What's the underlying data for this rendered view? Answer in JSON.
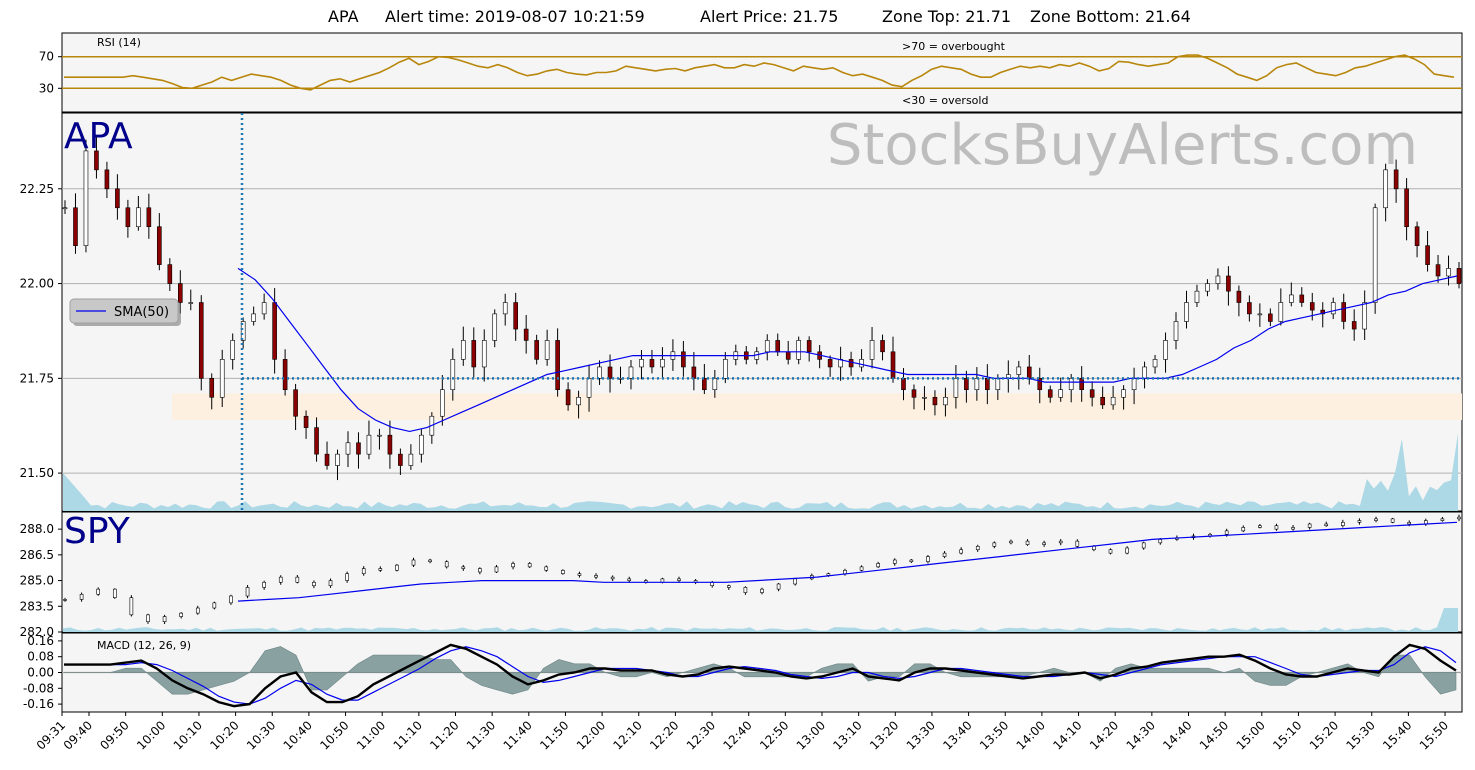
{
  "header": {
    "ticker": "APA",
    "alert_time": "Alert time: 2019-08-07 10:21:59",
    "alert_price": "Alert Price: 21.75",
    "zone_top": "Zone Top: 21.71",
    "zone_bottom": "Zone Bottom: 21.64"
  },
  "watermark": "StocksBuyAlerts.com",
  "colors": {
    "background": "#f5f5f5",
    "rsi_line": "#b8860b",
    "sma_line": "#0000ee",
    "volume": "#add8e6",
    "zone_fill": "#fdf0e0",
    "alert_line": "#1f77b4",
    "macd_hist": "#7f9898",
    "panel_title": "#00008b",
    "watermark": "#bdbdbd"
  },
  "chart_data": [
    {
      "type": "line",
      "title": "RSI (14)",
      "ylim": [
        0,
        100
      ],
      "yticks": [
        "30",
        "70"
      ],
      "reference_lines": [
        70,
        30
      ],
      "annotations": [
        ">70 = overbought",
        "<30 = oversold"
      ],
      "series": [
        {
          "values": [
            44,
            44,
            44,
            44,
            44,
            44,
            44,
            46,
            44,
            42,
            40,
            36,
            31,
            30,
            34,
            38,
            44,
            40,
            44,
            48,
            46,
            44,
            40,
            34,
            30,
            28,
            34,
            40,
            42,
            38,
            42,
            46,
            50,
            56,
            63,
            68,
            60,
            64,
            70,
            69,
            66,
            62,
            58,
            56,
            60,
            56,
            50,
            46,
            48,
            52,
            54,
            50,
            48,
            47,
            50,
            50,
            52,
            58,
            56,
            54,
            52,
            54,
            55,
            52,
            56,
            58,
            60,
            56,
            56,
            60,
            58,
            62,
            60,
            56,
            52,
            58,
            56,
            54,
            56,
            50,
            46,
            48,
            44,
            40,
            34,
            32,
            40,
            46,
            54,
            58,
            56,
            54,
            48,
            44,
            44,
            50,
            54,
            58,
            56,
            58,
            56,
            60,
            58,
            62,
            58,
            52,
            55,
            64,
            63,
            60,
            58,
            60,
            62,
            70,
            72,
            72,
            68,
            62,
            56,
            48,
            44,
            40,
            46,
            56,
            60,
            62,
            56,
            50,
            48,
            46,
            50,
            56,
            58,
            62,
            66,
            70,
            72,
            67,
            60,
            48,
            46,
            44
          ]
        }
      ]
    },
    {
      "type": "candlestick",
      "title": "APA",
      "ylim": [
        21.4,
        22.45
      ],
      "yticks": [
        "21.50",
        "21.75",
        "22.00",
        "22.25"
      ],
      "alert_price": 21.75,
      "zone": [
        21.64,
        21.71
      ],
      "alert_time": "10:21",
      "legend": [
        "SMA(50)"
      ],
      "price_series": [
        22.2,
        22.1,
        22.35,
        22.3,
        22.25,
        22.2,
        22.15,
        22.2,
        22.15,
        22.05,
        22.0,
        21.95,
        21.95,
        21.75,
        21.7,
        21.8,
        21.85,
        21.9,
        21.92,
        21.95,
        21.8,
        21.72,
        21.65,
        21.62,
        21.55,
        21.52,
        21.55,
        21.58,
        21.55,
        21.6,
        21.6,
        21.55,
        21.52,
        21.55,
        21.6,
        21.65,
        21.72,
        21.8,
        21.85,
        21.78,
        21.85,
        21.92,
        21.95,
        21.88,
        21.85,
        21.8,
        21.85,
        21.72,
        21.68,
        21.7,
        21.75,
        21.78,
        21.75,
        21.75,
        21.78,
        21.8,
        21.78,
        21.8,
        21.82,
        21.78,
        21.75,
        21.72,
        21.75,
        21.8,
        21.82,
        21.8,
        21.82,
        21.85,
        21.82,
        21.8,
        21.85,
        21.82,
        21.8,
        21.78,
        21.8,
        21.78,
        21.8,
        21.85,
        21.82,
        21.75,
        21.72,
        21.7,
        21.7,
        21.68,
        21.7,
        21.75,
        21.72,
        21.75,
        21.72,
        21.75,
        21.76,
        21.78,
        21.75,
        21.72,
        21.7,
        21.72,
        21.75,
        21.72,
        21.7,
        21.68,
        21.7,
        21.72,
        21.75,
        21.78,
        21.8,
        21.85,
        21.9,
        21.95,
        21.98,
        22.0,
        22.02,
        21.98,
        21.95,
        21.92,
        21.92,
        21.9,
        21.95,
        21.97,
        21.95,
        21.93,
        21.92,
        21.95,
        21.9,
        21.88,
        21.95,
        22.2,
        22.3,
        22.25,
        22.15,
        22.1,
        22.05,
        22.02,
        22.04,
        22.0
      ],
      "sma_series": [
        22.04,
        22.01,
        21.96,
        21.9,
        21.84,
        21.78,
        21.72,
        21.67,
        21.64,
        21.62,
        21.61,
        21.62,
        21.64,
        21.66,
        21.68,
        21.7,
        21.72,
        21.74,
        21.76,
        21.77,
        21.78,
        21.79,
        21.8,
        21.81,
        21.81,
        21.81,
        21.81,
        21.81,
        21.81,
        21.81,
        21.81,
        21.82,
        21.82,
        21.82,
        21.81,
        21.8,
        21.79,
        21.78,
        21.77,
        21.76,
        21.76,
        21.76,
        21.76,
        21.76,
        21.75,
        21.75,
        21.75,
        21.74,
        21.74,
        21.74,
        21.74,
        21.74,
        21.75,
        21.75,
        21.75,
        21.76,
        21.78,
        21.8,
        21.83,
        21.85,
        21.88,
        21.9,
        21.91,
        21.92,
        21.93,
        21.94,
        21.95,
        21.97,
        21.98,
        22.0,
        22.01,
        22.02
      ]
    },
    {
      "type": "candlestick",
      "title": "SPY",
      "ylim": [
        282.0,
        289.0
      ],
      "yticks": [
        "282.0",
        "283.5",
        "285.0",
        "286.5",
        "288.0"
      ],
      "price_series": [
        283.9,
        284.2,
        284.5,
        284.0,
        283.0,
        282.6,
        282.9,
        283.1,
        283.4,
        283.7,
        284.1,
        284.6,
        284.9,
        285.2,
        284.9,
        284.7,
        285.0,
        285.4,
        285.7,
        285.6,
        285.9,
        286.2,
        286.1,
        285.8,
        285.7,
        285.5,
        285.8,
        286.0,
        285.8,
        285.6,
        285.4,
        285.3,
        285.2,
        285.1,
        285.0,
        284.9,
        285.1,
        285.0,
        284.9,
        284.7,
        284.6,
        284.3,
        284.5,
        284.8,
        285.1,
        285.3,
        285.4,
        285.6,
        285.8,
        286.0,
        286.2,
        286.1,
        286.4,
        286.6,
        286.8,
        287.0,
        287.2,
        287.3,
        287.1,
        287.2,
        287.3,
        287.0,
        286.8,
        286.6,
        286.9,
        287.2,
        287.4,
        287.5,
        287.6,
        287.7,
        287.9,
        288.1,
        288.2,
        288.0,
        288.1,
        288.3,
        288.2,
        288.4,
        288.5,
        288.6,
        288.4,
        288.3,
        288.5,
        288.6,
        288.7
      ],
      "sma_series": [
        283.8,
        283.9,
        284.0,
        284.2,
        284.4,
        284.6,
        284.8,
        284.9,
        285.0,
        285.0,
        285.0,
        285.0,
        284.9,
        284.9,
        284.9,
        284.9,
        284.9,
        285.0,
        285.1,
        285.2,
        285.4,
        285.6,
        285.8,
        286.0,
        286.2,
        286.4,
        286.6,
        286.8,
        287.0,
        287.2,
        287.4,
        287.5,
        287.6,
        287.7,
        287.8,
        287.9,
        288.0,
        288.1,
        288.2,
        288.3,
        288.4
      ]
    },
    {
      "type": "line",
      "title": "MACD (12, 26, 9)",
      "ylim": [
        -0.2,
        0.2
      ],
      "yticks": [
        "-0.16",
        "-0.08",
        "0.00",
        "0.08",
        "0.16"
      ],
      "series": [
        {
          "name": "macd",
          "values": [
            0.04,
            0.04,
            0.04,
            0.04,
            0.05,
            0.06,
            0.02,
            -0.04,
            -0.08,
            -0.11,
            -0.15,
            -0.17,
            -0.16,
            -0.08,
            -0.02,
            0.0,
            -0.1,
            -0.15,
            -0.15,
            -0.12,
            -0.06,
            -0.02,
            0.02,
            0.06,
            0.1,
            0.14,
            0.12,
            0.08,
            0.04,
            -0.02,
            -0.06,
            -0.04,
            -0.01,
            0.0,
            0.02,
            0.02,
            0.01,
            0.01,
            0.01,
            -0.01,
            -0.02,
            -0.01,
            0.02,
            0.03,
            0.02,
            0.01,
            0.0,
            -0.02,
            -0.03,
            -0.02,
            0.0,
            0.02,
            -0.02,
            -0.03,
            -0.04,
            0.0,
            0.02,
            0.02,
            0.01,
            0.0,
            -0.01,
            -0.02,
            -0.03,
            -0.02,
            -0.01,
            -0.01,
            0.0,
            -0.03,
            -0.01,
            0.02,
            0.03,
            0.05,
            0.06,
            0.07,
            0.08,
            0.08,
            0.09,
            0.06,
            0.02,
            -0.01,
            -0.02,
            -0.02,
            0.0,
            0.02,
            0.01,
            0.0,
            0.08,
            0.14,
            0.12,
            0.06,
            0.01
          ]
        },
        {
          "name": "signal",
          "values": [
            0.04,
            0.04,
            0.04,
            0.04,
            0.04,
            0.05,
            0.04,
            0.01,
            -0.03,
            -0.07,
            -0.12,
            -0.15,
            -0.16,
            -0.13,
            -0.08,
            -0.04,
            -0.06,
            -0.11,
            -0.14,
            -0.14,
            -0.1,
            -0.06,
            -0.02,
            0.02,
            0.07,
            0.11,
            0.13,
            0.11,
            0.08,
            0.03,
            -0.02,
            -0.05,
            -0.04,
            -0.02,
            0.0,
            0.02,
            0.02,
            0.02,
            0.01,
            0.0,
            -0.02,
            -0.02,
            0.0,
            0.02,
            0.03,
            0.02,
            0.01,
            -0.01,
            -0.02,
            -0.03,
            -0.02,
            0.0,
            0.0,
            -0.02,
            -0.03,
            -0.02,
            0.0,
            0.02,
            0.02,
            0.01,
            0.0,
            -0.01,
            -0.02,
            -0.02,
            -0.02,
            -0.01,
            0.0,
            -0.01,
            -0.02,
            0.0,
            0.02,
            0.04,
            0.05,
            0.06,
            0.07,
            0.08,
            0.08,
            0.08,
            0.05,
            0.02,
            -0.01,
            -0.02,
            -0.01,
            0.0,
            0.01,
            0.01,
            0.04,
            0.1,
            0.13,
            0.11,
            0.05
          ]
        }
      ]
    }
  ],
  "x_axis": {
    "ticks": [
      "09:31",
      "09:40",
      "09:50",
      "10:00",
      "10:10",
      "10:20",
      "10:30",
      "10:40",
      "10:50",
      "11:00",
      "11:10",
      "11:20",
      "11:30",
      "11:40",
      "11:50",
      "12:00",
      "12:10",
      "12:20",
      "12:30",
      "12:40",
      "12:50",
      "13:00",
      "13:10",
      "13:20",
      "13:30",
      "13:40",
      "13:50",
      "14:00",
      "14:10",
      "14:20",
      "14:30",
      "14:40",
      "14:50",
      "15:00",
      "15:10",
      "15:20",
      "15:30",
      "15:40",
      "15:50"
    ]
  }
}
